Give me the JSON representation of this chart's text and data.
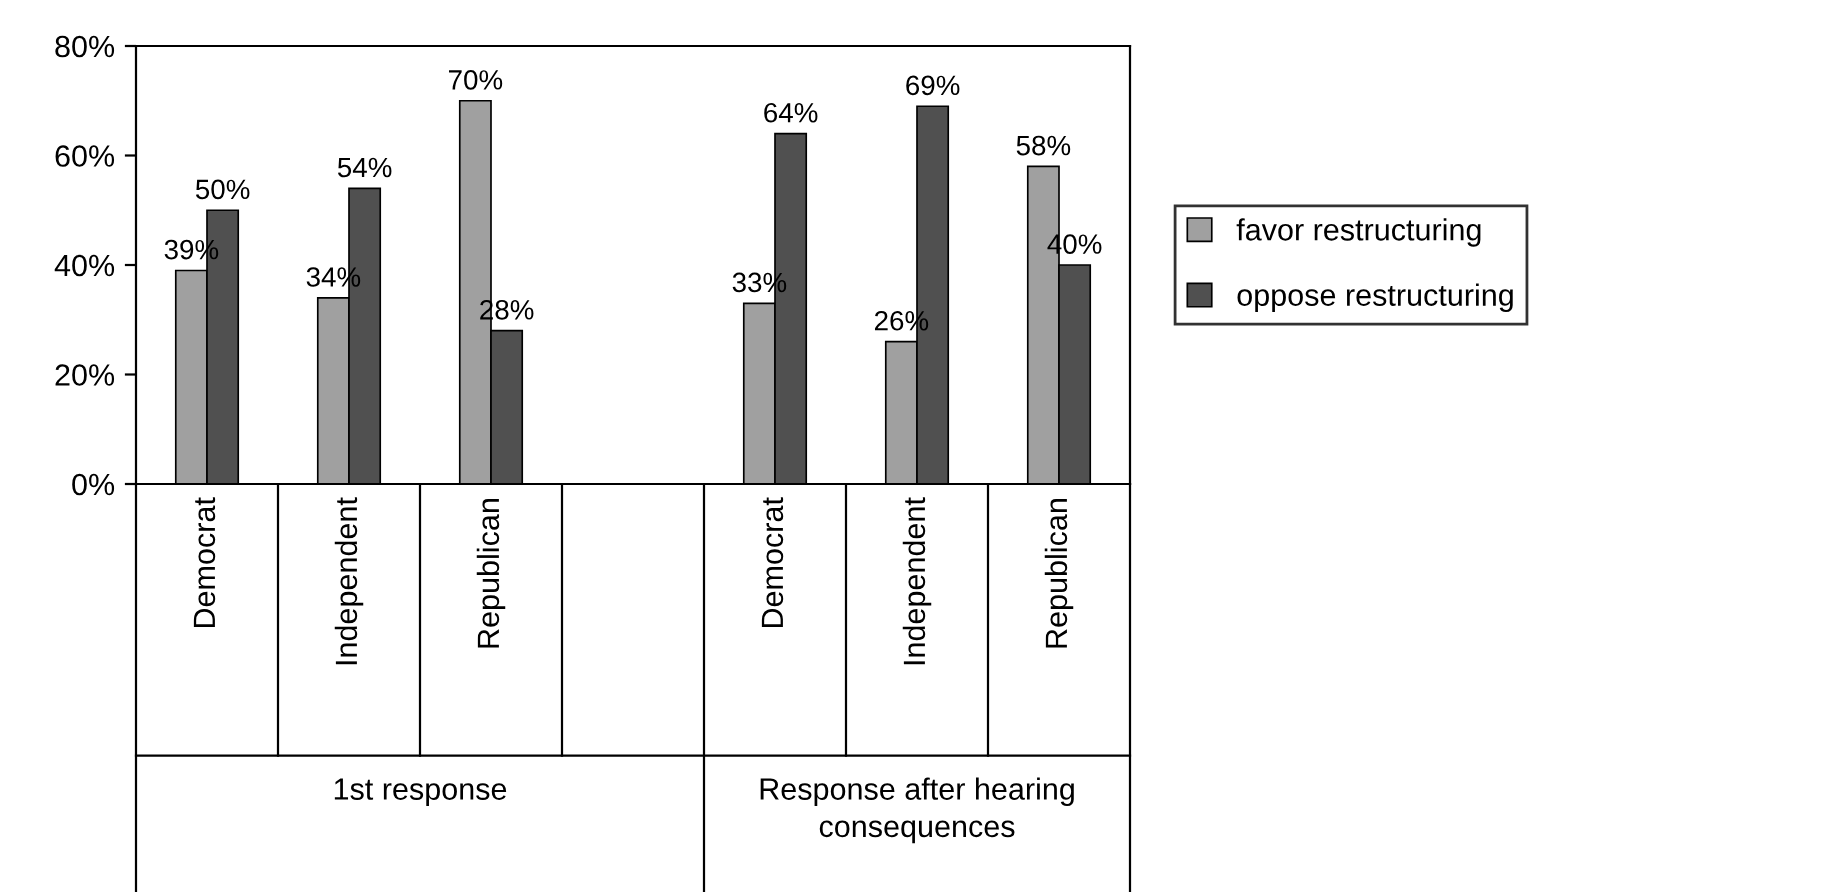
{
  "chart_data": {
    "type": "bar",
    "categories": [
      "Democrat",
      "Independent",
      "Republican",
      null,
      "Democrat",
      "Independent",
      "Republican"
    ],
    "series": [
      {
        "name": "favor restructuring",
        "color": "#a0a0a0",
        "values": [
          39,
          34,
          70,
          null,
          33,
          26,
          58
        ],
        "value_labels": [
          "39%",
          "34%",
          "70%",
          null,
          "33%",
          "26%",
          "58%"
        ]
      },
      {
        "name": "oppose restructuring",
        "color": "#505050",
        "values": [
          50,
          54,
          28,
          null,
          64,
          69,
          40
        ],
        "value_labels": [
          "50%",
          "54%",
          "28%",
          null,
          "64%",
          "69%",
          "40%"
        ]
      }
    ],
    "ylim": [
      0,
      80
    ],
    "yticks": [
      {
        "value": 0,
        "label": "0%"
      },
      {
        "value": 20,
        "label": "20%"
      },
      {
        "value": 40,
        "label": "40%"
      },
      {
        "value": 60,
        "label": "60%"
      },
      {
        "value": 80,
        "label": "80%"
      }
    ],
    "legend": "right",
    "grid": false,
    "annotations": [
      "1st response",
      "Response after hearing consequences"
    ]
  }
}
